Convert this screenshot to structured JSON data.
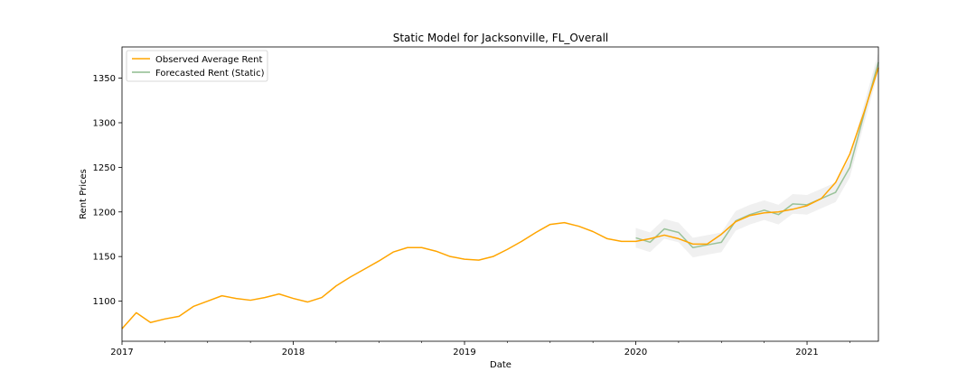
{
  "chart_data": {
    "type": "line",
    "title": "Static Model for Jacksonville, FL_Overall",
    "xlabel": "Date",
    "ylabel": "Rent Prices",
    "xlim": [
      "2017-01",
      "2021-06"
    ],
    "ylim": [
      1055,
      1385
    ],
    "x_ticks": [
      "2017",
      "2018",
      "2019",
      "2020",
      "2021"
    ],
    "y_ticks": [
      1100,
      1150,
      1200,
      1250,
      1300,
      1350
    ],
    "grid": false,
    "legend_position": "top-left",
    "series": [
      {
        "name": "Observed Average Rent",
        "color": "#ffa500",
        "points": [
          [
            "2017-01",
            1069
          ],
          [
            "2017-02",
            1087
          ],
          [
            "2017-03",
            1076
          ],
          [
            "2017-04",
            1080
          ],
          [
            "2017-05",
            1083
          ],
          [
            "2017-06",
            1094
          ],
          [
            "2017-07",
            1100
          ],
          [
            "2017-08",
            1106
          ],
          [
            "2017-09",
            1103
          ],
          [
            "2017-10",
            1101
          ],
          [
            "2017-11",
            1104
          ],
          [
            "2017-12",
            1108
          ],
          [
            "2018-01",
            1103
          ],
          [
            "2018-02",
            1099
          ],
          [
            "2018-03",
            1104
          ],
          [
            "2018-04",
            1117
          ],
          [
            "2018-05",
            1127
          ],
          [
            "2018-06",
            1136
          ],
          [
            "2018-07",
            1145
          ],
          [
            "2018-08",
            1155
          ],
          [
            "2018-09",
            1160
          ],
          [
            "2018-10",
            1160
          ],
          [
            "2018-11",
            1156
          ],
          [
            "2018-12",
            1150
          ],
          [
            "2019-01",
            1147
          ],
          [
            "2019-02",
            1146
          ],
          [
            "2019-03",
            1150
          ],
          [
            "2019-04",
            1158
          ],
          [
            "2019-05",
            1167
          ],
          [
            "2019-06",
            1177
          ],
          [
            "2019-07",
            1186
          ],
          [
            "2019-08",
            1188
          ],
          [
            "2019-09",
            1184
          ],
          [
            "2019-10",
            1178
          ],
          [
            "2019-11",
            1170
          ],
          [
            "2019-12",
            1167
          ],
          [
            "2020-01",
            1167
          ],
          [
            "2020-02",
            1170
          ],
          [
            "2020-03",
            1174
          ],
          [
            "2020-04",
            1170
          ],
          [
            "2020-05",
            1164
          ],
          [
            "2020-06",
            1164
          ],
          [
            "2020-07",
            1175
          ],
          [
            "2020-08",
            1189
          ],
          [
            "2020-09",
            1196
          ],
          [
            "2020-10",
            1199
          ],
          [
            "2020-11",
            1200
          ],
          [
            "2020-12",
            1203
          ],
          [
            "2021-01",
            1207
          ],
          [
            "2021-02",
            1215
          ],
          [
            "2021-03",
            1233
          ],
          [
            "2021-04",
            1265
          ],
          [
            "2021-05",
            1312
          ],
          [
            "2021-06",
            1362
          ]
        ]
      },
      {
        "name": "Forecasted Rent (Static)",
        "color": "#8fbc8f",
        "points": [
          [
            "2020-01",
            1171
          ],
          [
            "2020-02",
            1166
          ],
          [
            "2020-03",
            1181
          ],
          [
            "2020-04",
            1177
          ],
          [
            "2020-05",
            1160
          ],
          [
            "2020-06",
            1163
          ],
          [
            "2020-07",
            1166
          ],
          [
            "2020-08",
            1190
          ],
          [
            "2020-09",
            1197
          ],
          [
            "2020-10",
            1202
          ],
          [
            "2020-11",
            1197
          ],
          [
            "2020-12",
            1209
          ],
          [
            "2021-01",
            1208
          ],
          [
            "2021-02",
            1215
          ],
          [
            "2021-03",
            1222
          ],
          [
            "2021-04",
            1250
          ],
          [
            "2021-05",
            1310
          ],
          [
            "2021-06",
            1368
          ]
        ],
        "confidence_band": {
          "color": "#d3d3d3",
          "lower": [
            1160,
            1155,
            1170,
            1166,
            1149,
            1152,
            1155,
            1179,
            1186,
            1191,
            1186,
            1198,
            1197,
            1204,
            1211,
            1239,
            1299,
            1357
          ],
          "upper": [
            1182,
            1177,
            1192,
            1188,
            1171,
            1174,
            1177,
            1201,
            1208,
            1213,
            1208,
            1220,
            1219,
            1226,
            1233,
            1261,
            1321,
            1379
          ]
        }
      }
    ]
  }
}
